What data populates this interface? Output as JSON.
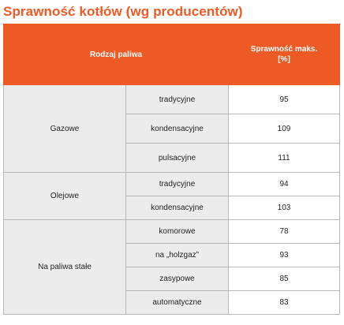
{
  "title": "Sprawność kotłów (wg producentów)",
  "table": {
    "header": {
      "fuel_type": "Rodzaj paliwa",
      "efficiency_line1": "Sprawność maks.",
      "efficiency_line2": "[%]"
    },
    "groups": [
      {
        "name": "Gazowe",
        "rows": [
          {
            "type": "tradycyjne",
            "value": "95"
          },
          {
            "type": "kondensacyjne",
            "value": "109"
          },
          {
            "type": "pulsacyjne",
            "value": "111"
          }
        ]
      },
      {
        "name": "Olejowe",
        "rows": [
          {
            "type": "tradycyjne",
            "value": "94"
          },
          {
            "type": "kondensacyjne",
            "value": "103"
          }
        ]
      },
      {
        "name": "Na paliwa stałe",
        "rows": [
          {
            "type": "komorowe",
            "value": "78"
          },
          {
            "type": "na „holzgaz”",
            "value": "93"
          },
          {
            "type": "zasypowe",
            "value": "85"
          },
          {
            "type": "automatyczne",
            "value": "83"
          }
        ]
      }
    ]
  },
  "colors": {
    "accent": "#ee5a25",
    "shaded_cell": "#ececec",
    "border": "#b8b8b8"
  }
}
